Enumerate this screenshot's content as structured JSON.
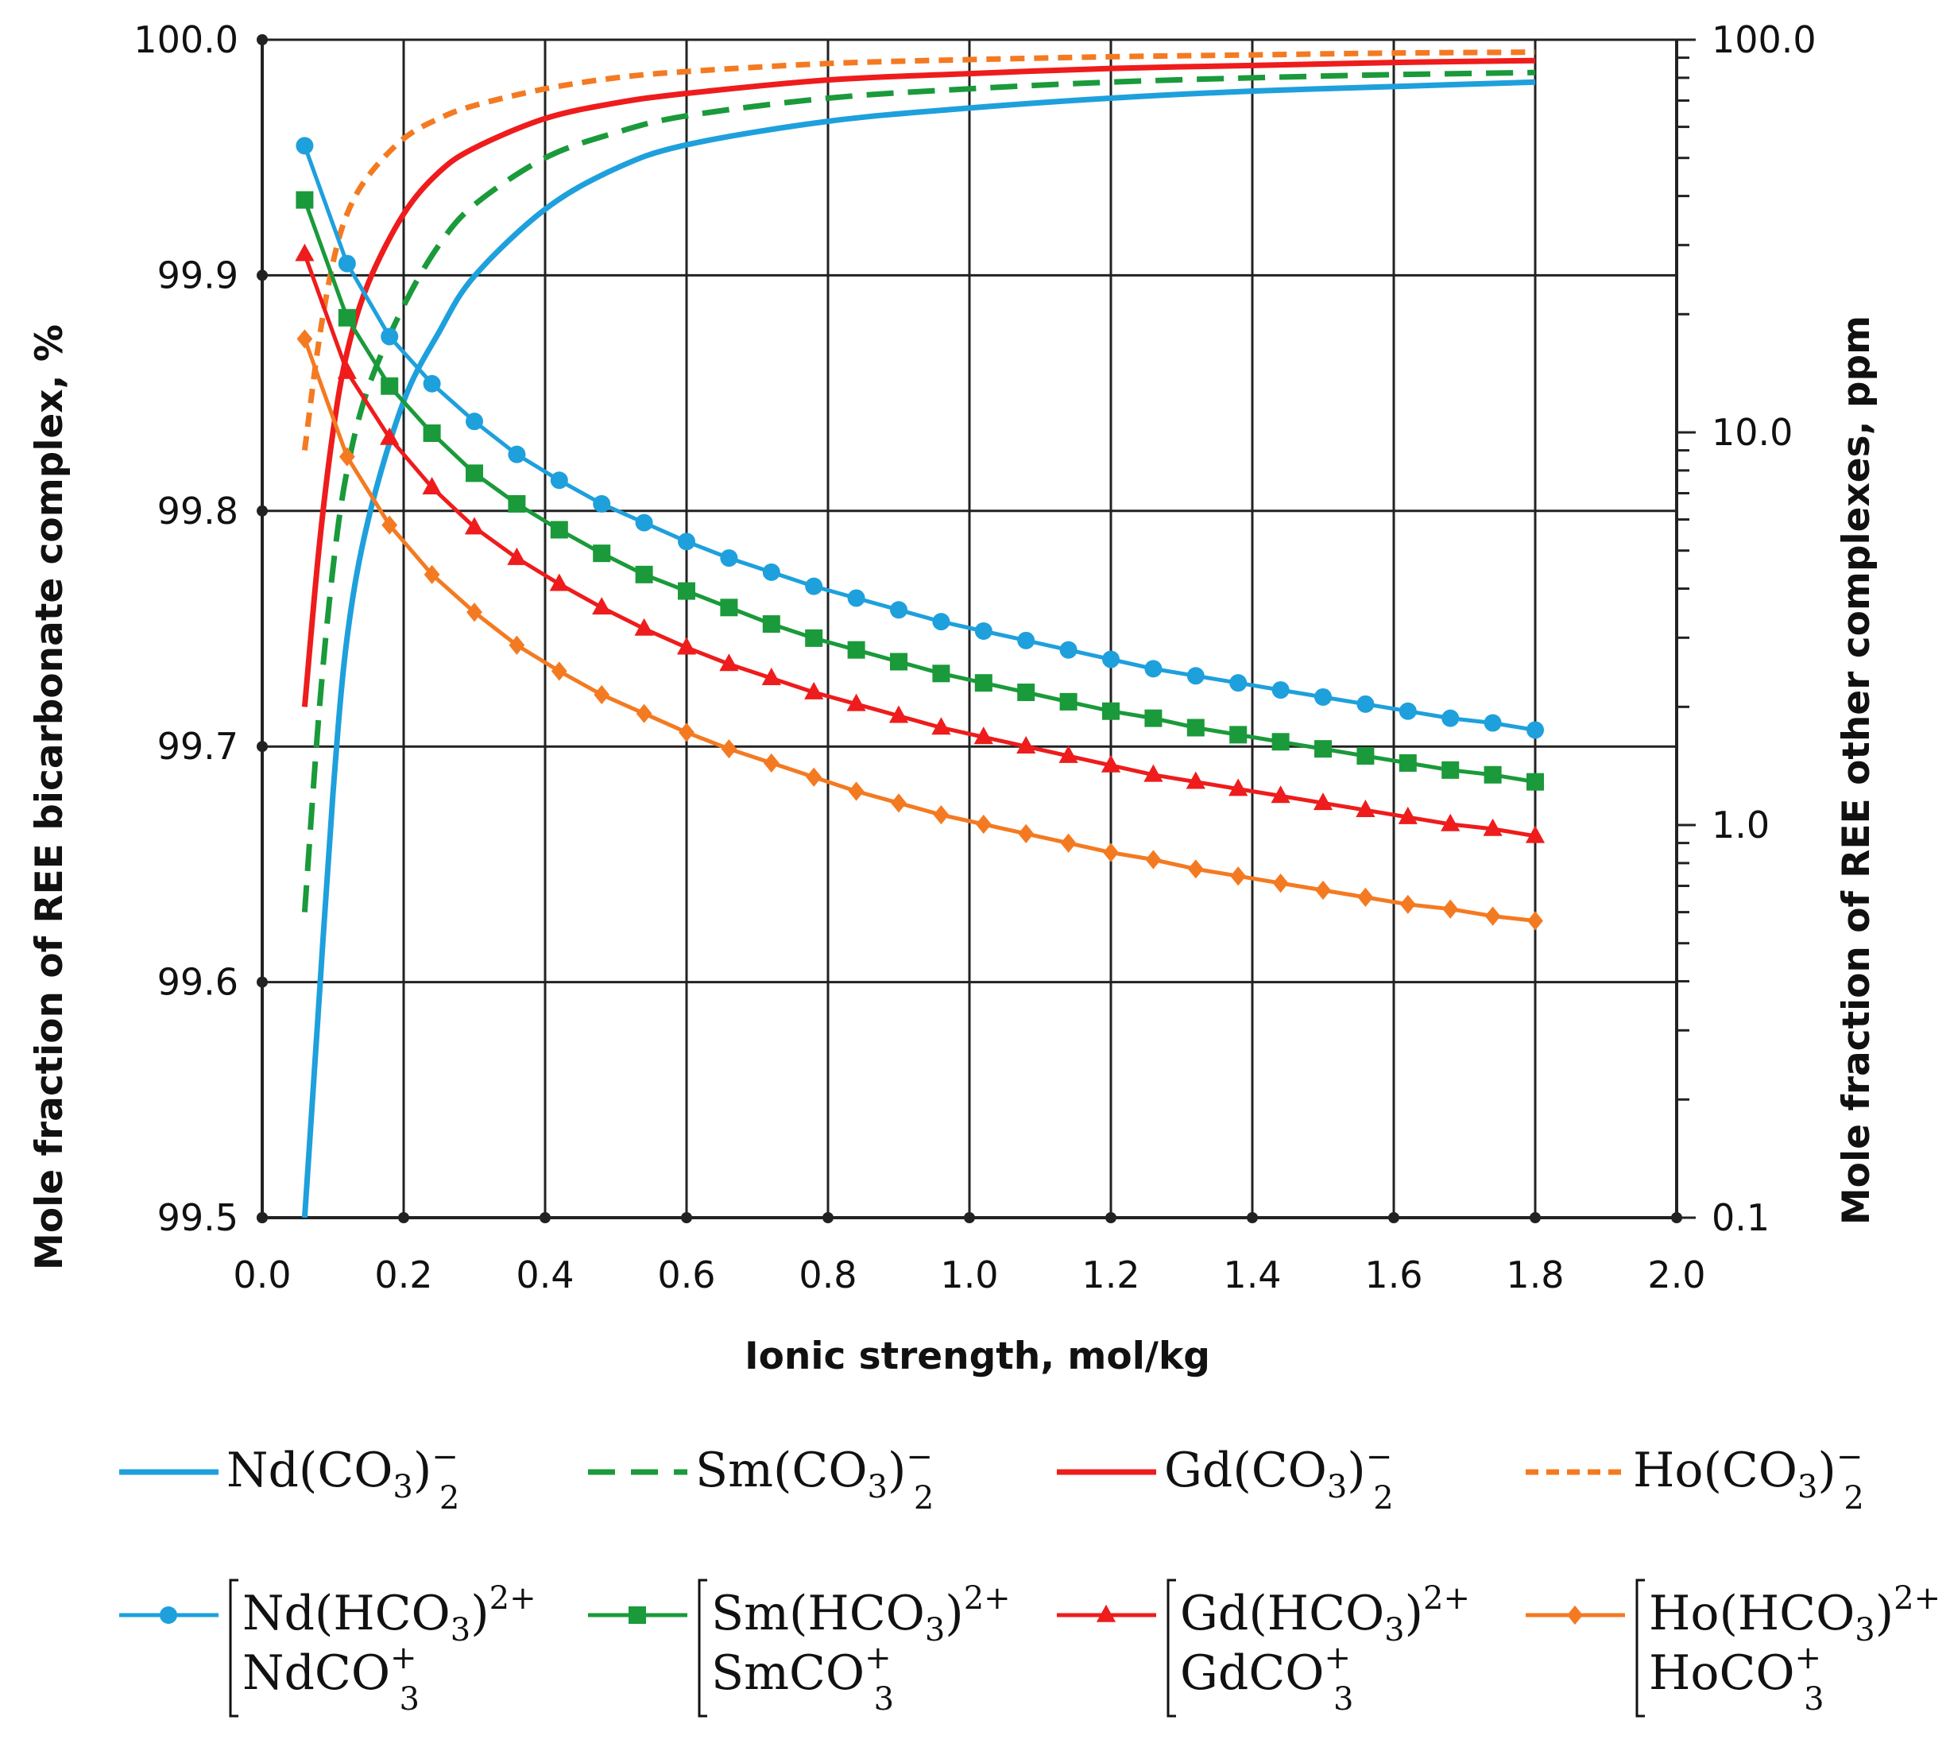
{
  "chart_data": {
    "type": "line",
    "xlabel": "Ionic strength, mol/kg",
    "ylabel_left": "Mole fraction of REE bicarbonate complex, %",
    "ylabel_right": "Mole fraction of REE other complexes, ppm",
    "xlim": [
      0.0,
      2.0
    ],
    "ylim_left": [
      99.5,
      100.0
    ],
    "ylim_right_log": [
      0.1,
      100.0
    ],
    "x_ticks": [
      "0.0",
      "0.2",
      "0.4",
      "0.6",
      "0.8",
      "1.0",
      "1.2",
      "1.4",
      "1.6",
      "1.8",
      "2.0"
    ],
    "y_left_ticks": [
      "99.5",
      "99.6",
      "99.7",
      "99.8",
      "99.9",
      "100.0"
    ],
    "y_right_ticks": [
      "0.1",
      "1.0",
      "10.0",
      "100.0"
    ],
    "grid": true,
    "legend_position": "bottom",
    "dicarbonate_series": [
      {
        "name": "Nd(CO3)2-",
        "axis": "right",
        "color": "#1ea0dc",
        "dash": "solid",
        "x": [
          0.06,
          0.08,
          0.1,
          0.12,
          0.15,
          0.2,
          0.25,
          0.3,
          0.4,
          0.5,
          0.6,
          0.8,
          1.0,
          1.2,
          1.4,
          1.6,
          1.8
        ],
        "values": [
          0.1,
          0.35,
          1.2,
          3.0,
          6.0,
          12.0,
          18.0,
          25.0,
          37.0,
          47.0,
          54.0,
          62.0,
          67.0,
          71.0,
          74.0,
          76.0,
          78.0
        ]
      },
      {
        "name": "Sm(CO3)2-",
        "axis": "right",
        "color": "#1a9a3a",
        "dash": "dashed",
        "x": [
          0.06,
          0.08,
          0.1,
          0.12,
          0.15,
          0.2,
          0.25,
          0.3,
          0.4,
          0.5,
          0.6,
          0.8,
          1.0,
          1.2,
          1.4,
          1.6,
          1.8
        ],
        "values": [
          0.6,
          1.9,
          4.5,
          8.0,
          13.0,
          21.0,
          30.0,
          38.0,
          50.0,
          58.0,
          64.0,
          71.0,
          75.0,
          78.0,
          80.0,
          81.5,
          82.5
        ]
      },
      {
        "name": "Gd(CO3)2-",
        "axis": "right",
        "color": "#ee1c1c",
        "dash": "solid",
        "x": [
          0.06,
          0.08,
          0.1,
          0.12,
          0.15,
          0.2,
          0.25,
          0.3,
          0.4,
          0.5,
          0.6,
          0.8,
          1.0,
          1.2,
          1.4,
          1.6,
          1.8
        ],
        "values": [
          2.0,
          5.0,
          10.0,
          16.0,
          24.0,
          36.0,
          46.0,
          53.0,
          63.0,
          69.0,
          73.0,
          79.0,
          82.0,
          84.5,
          86.0,
          87.5,
          88.5
        ]
      },
      {
        "name": "Ho(CO3)2-",
        "axis": "right",
        "color": "#f47a22",
        "dash": "short-dash",
        "x": [
          0.06,
          0.08,
          0.1,
          0.12,
          0.15,
          0.2,
          0.25,
          0.3,
          0.4,
          0.5,
          0.6,
          0.8,
          1.0,
          1.2,
          1.4,
          1.6,
          1.8
        ],
        "values": [
          9.0,
          17.0,
          27.0,
          36.0,
          45.0,
          56.0,
          63.0,
          68.0,
          75.0,
          80.0,
          83.0,
          87.0,
          89.0,
          90.5,
          91.5,
          92.5,
          93.0
        ]
      }
    ],
    "bicarbonate_series": [
      {
        "name": "Nd(HCO3)2+ + NdCO3+",
        "axis": "left",
        "color": "#1ea0dc",
        "marker": "circle",
        "x": [
          0.06,
          0.12,
          0.18,
          0.24,
          0.3,
          0.36,
          0.42,
          0.48,
          0.54,
          0.6,
          0.66,
          0.72,
          0.78,
          0.84,
          0.9,
          0.96,
          1.02,
          1.08,
          1.14,
          1.2,
          1.26,
          1.32,
          1.38,
          1.44,
          1.5,
          1.56,
          1.62,
          1.68,
          1.74,
          1.8
        ],
        "values": [
          99.955,
          99.905,
          99.874,
          99.854,
          99.838,
          99.824,
          99.813,
          99.803,
          99.795,
          99.787,
          99.78,
          99.774,
          99.768,
          99.763,
          99.758,
          99.753,
          99.749,
          99.745,
          99.741,
          99.737,
          99.733,
          99.73,
          99.727,
          99.724,
          99.721,
          99.718,
          99.715,
          99.712,
          99.71,
          99.707
        ]
      },
      {
        "name": "Sm(HCO3)2+ + SmCO3+",
        "axis": "left",
        "color": "#1a9a3a",
        "marker": "square",
        "x": [
          0.06,
          0.12,
          0.18,
          0.24,
          0.3,
          0.36,
          0.42,
          0.48,
          0.54,
          0.6,
          0.66,
          0.72,
          0.78,
          0.84,
          0.9,
          0.96,
          1.02,
          1.08,
          1.14,
          1.2,
          1.26,
          1.32,
          1.38,
          1.44,
          1.5,
          1.56,
          1.62,
          1.68,
          1.74,
          1.8
        ],
        "values": [
          99.932,
          99.882,
          99.853,
          99.833,
          99.816,
          99.803,
          99.792,
          99.782,
          99.773,
          99.766,
          99.759,
          99.752,
          99.746,
          99.741,
          99.736,
          99.731,
          99.727,
          99.723,
          99.719,
          99.715,
          99.712,
          99.708,
          99.705,
          99.702,
          99.699,
          99.696,
          99.693,
          99.69,
          99.688,
          99.685
        ]
      },
      {
        "name": "Gd(HCO3)2+ + GdCO3+",
        "axis": "left",
        "color": "#ee1c1c",
        "marker": "triangle",
        "x": [
          0.06,
          0.12,
          0.18,
          0.24,
          0.3,
          0.36,
          0.42,
          0.48,
          0.54,
          0.6,
          0.66,
          0.72,
          0.78,
          0.84,
          0.9,
          0.96,
          1.02,
          1.08,
          1.14,
          1.2,
          1.26,
          1.32,
          1.38,
          1.44,
          1.5,
          1.56,
          1.62,
          1.68,
          1.74,
          1.8
        ],
        "values": [
          99.909,
          99.859,
          99.831,
          99.81,
          99.793,
          99.78,
          99.769,
          99.759,
          99.75,
          99.742,
          99.735,
          99.729,
          99.723,
          99.718,
          99.713,
          99.708,
          99.704,
          99.7,
          99.696,
          99.692,
          99.688,
          99.685,
          99.682,
          99.679,
          99.676,
          99.673,
          99.67,
          99.667,
          99.665,
          99.662
        ]
      },
      {
        "name": "Ho(HCO3)2+ + HoCO3+",
        "axis": "left",
        "color": "#f47a22",
        "marker": "diamond",
        "x": [
          0.06,
          0.12,
          0.18,
          0.24,
          0.3,
          0.36,
          0.42,
          0.48,
          0.54,
          0.6,
          0.66,
          0.72,
          0.78,
          0.84,
          0.9,
          0.96,
          1.02,
          1.08,
          1.14,
          1.2,
          1.26,
          1.32,
          1.38,
          1.44,
          1.5,
          1.56,
          1.62,
          1.68,
          1.74,
          1.8
        ],
        "values": [
          99.873,
          99.823,
          99.794,
          99.773,
          99.757,
          99.743,
          99.732,
          99.722,
          99.714,
          99.706,
          99.699,
          99.693,
          99.687,
          99.681,
          99.676,
          99.671,
          99.667,
          99.663,
          99.659,
          99.655,
          99.652,
          99.648,
          99.645,
          99.642,
          99.639,
          99.636,
          99.633,
          99.631,
          99.628,
          99.626
        ]
      }
    ],
    "legend": {
      "row1": [
        {
          "base": "Nd(CO",
          "sub": "3",
          "close": ")",
          "subsup_sub": "2",
          "subsup_sup": "−"
        },
        {
          "base": "Sm(CO",
          "sub": "3",
          "close": ")",
          "subsup_sub": "2",
          "subsup_sup": "−"
        },
        {
          "base": "Gd(CO",
          "sub": "3",
          "close": ")",
          "subsup_sub": "2",
          "subsup_sup": "−"
        },
        {
          "base": "Ho(CO",
          "sub": "3",
          "close": ")",
          "subsup_sub": "2",
          "subsup_sup": "−"
        }
      ],
      "row2": [
        {
          "line1_base": "Nd(HCO",
          "line1_sub": "3",
          "line1_close": ")",
          "line1_sup": "2+",
          "line2_base": "NdCO",
          "line2_sub": "3",
          "line2_sup": "+"
        },
        {
          "line1_base": "Sm(HCO",
          "line1_sub": "3",
          "line1_close": ")",
          "line1_sup": "2+",
          "line2_base": "SmCO",
          "line2_sub": "3",
          "line2_sup": "+"
        },
        {
          "line1_base": "Gd(HCO",
          "line1_sub": "3",
          "line1_close": ")",
          "line1_sup": "2+",
          "line2_base": "GdCO",
          "line2_sub": "3",
          "line2_sup": "+"
        },
        {
          "line1_base": "Ho(HCO",
          "line1_sub": "3",
          "line1_close": ")",
          "line1_sup": "2+",
          "line2_base": "HoCO",
          "line2_sub": "3",
          "line2_sup": "+"
        }
      ]
    }
  }
}
